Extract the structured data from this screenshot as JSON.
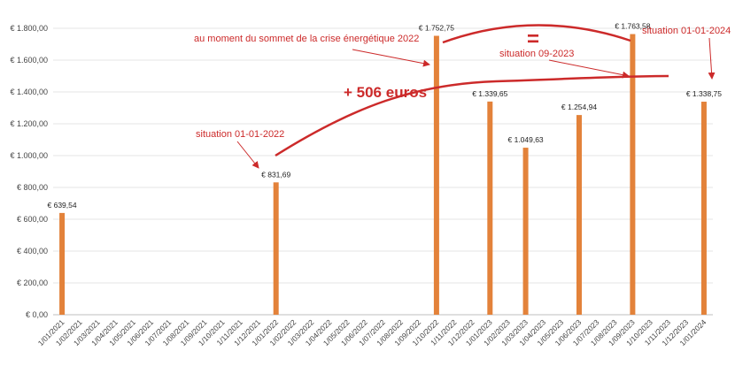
{
  "chart_data": {
    "type": "bar",
    "title": "",
    "xlabel": "",
    "ylabel": "",
    "ylim": [
      0,
      1800
    ],
    "ytick_values": [
      0,
      200,
      400,
      600,
      800,
      1000,
      1200,
      1400,
      1600,
      1800
    ],
    "ytick_labels": [
      "€ 0,00",
      "€ 200,00",
      "€ 400,00",
      "€ 600,00",
      "€ 800,00",
      "€ 1.000,00",
      "€ 1.200,00",
      "€ 1.400,00",
      "€ 1.600,00",
      "€ 1.800,00"
    ],
    "grid": true,
    "legend": "none",
    "bar_color": "#e3823a",
    "annotation_color": "#cc2a2a",
    "categories": [
      "1/01/2021",
      "1/02/2021",
      "1/03/2021",
      "1/04/2021",
      "1/05/2021",
      "1/06/2021",
      "1/07/2021",
      "1/08/2021",
      "1/09/2021",
      "1/10/2021",
      "1/11/2021",
      "1/12/2021",
      "1/01/2022",
      "1/02/2022",
      "1/03/2022",
      "1/04/2022",
      "1/05/2022",
      "1/06/2022",
      "1/07/2022",
      "1/08/2022",
      "1/09/2022",
      "1/10/2022",
      "1/11/2022",
      "1/12/2022",
      "1/01/2023",
      "1/02/2023",
      "1/03/2023",
      "1/04/2023",
      "1/05/2023",
      "1/06/2023",
      "1/07/2023",
      "1/08/2023",
      "1/09/2023",
      "1/10/2023",
      "1/11/2023",
      "1/12/2023",
      "1/01/2024"
    ],
    "values": [
      639.54,
      null,
      null,
      null,
      null,
      null,
      null,
      null,
      null,
      null,
      null,
      null,
      831.69,
      null,
      null,
      null,
      null,
      null,
      null,
      null,
      null,
      1752.75,
      null,
      null,
      1339.65,
      null,
      1049.63,
      null,
      null,
      1254.94,
      null,
      null,
      1763.58,
      null,
      null,
      null,
      1338.75
    ],
    "value_labels": [
      "€ 639,54",
      "",
      "",
      "",
      "",
      "",
      "",
      "",
      "",
      "",
      "",
      "",
      "€ 831,69",
      "",
      "",
      "",
      "",
      "",
      "",
      "",
      "",
      "€ 1.752,75",
      "",
      "",
      "€ 1.339,65",
      "",
      "€ 1.049,63",
      "",
      "",
      "€ 1.254,94",
      "",
      "",
      "€ 1.763,58",
      "",
      "",
      "",
      "€ 1.338,75"
    ],
    "annotations": {
      "situation_2022": "situation 01-01-2022",
      "peak_crisis": "au moment du sommet de la crise énergétique 2022",
      "increase": "+ 506 euros",
      "equal": "=",
      "situation_2023": "situation 09-2023",
      "situation_2024": "situation 01-01-2024"
    }
  }
}
